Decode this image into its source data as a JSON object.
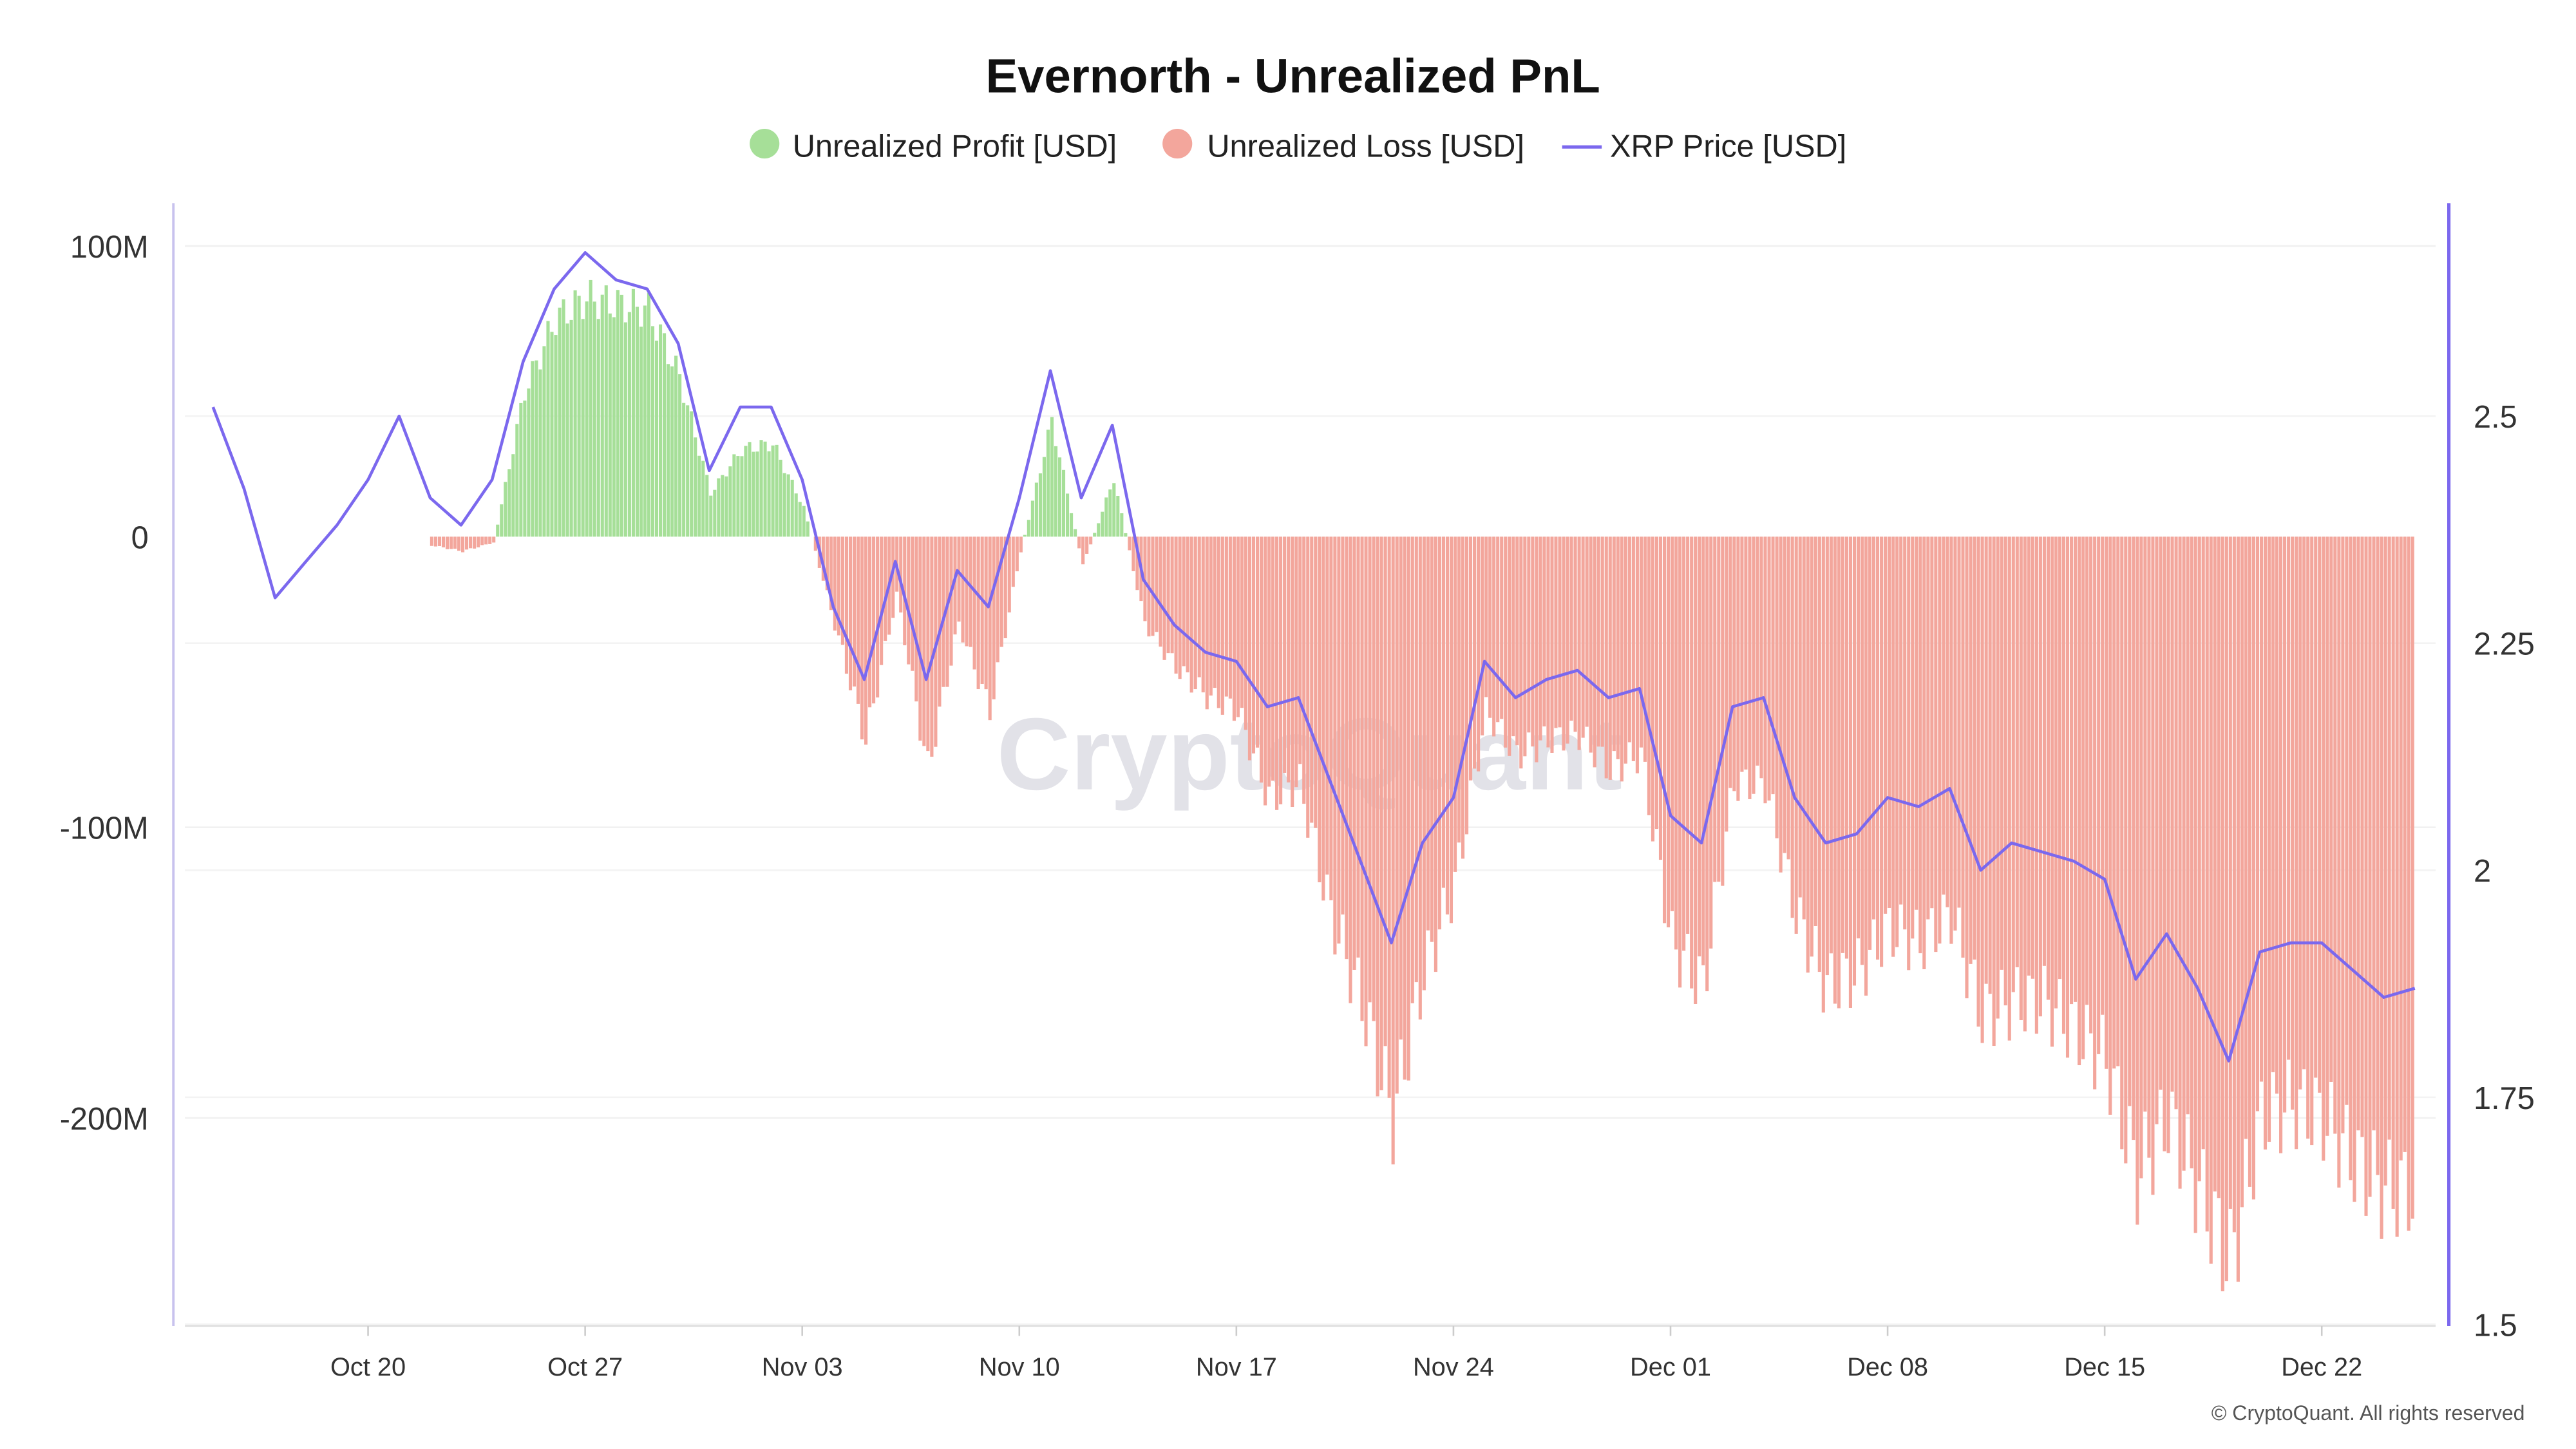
{
  "chart_data": {
    "type": "bar+line",
    "title": "Evernorth - Unrealized PnL",
    "legend": {
      "placement": "top-center",
      "items": [
        {
          "label": "Unrealized Profit [USD]",
          "color": "#a6df98",
          "marker": "circle"
        },
        {
          "label": "Unrealized Loss [USD]",
          "color": "#f3a69c",
          "marker": "circle"
        },
        {
          "label": "XRP Price [USD]",
          "color": "#7b68ee",
          "marker": "line"
        }
      ]
    },
    "x_ticks": [
      "Oct 20",
      "Oct 27",
      "Nov 03",
      "Nov 10",
      "Nov 17",
      "Nov 24",
      "Dec 01",
      "Dec 08",
      "Dec 15",
      "Dec 22"
    ],
    "y_left": {
      "ticks": [
        100,
        0,
        -100,
        -200
      ],
      "tick_labels": [
        "100M",
        "0",
        "-100M",
        "-200M"
      ],
      "range": [
        -272,
        116
      ],
      "unit": "M USD"
    },
    "y_right": {
      "ticks": [
        2.5,
        2.25,
        2,
        1.75,
        1.5
      ],
      "tick_labels": [
        "2.5",
        "2.25",
        "2",
        "1.75",
        "1.5"
      ],
      "range": [
        1.5,
        2.73
      ]
    },
    "grid": true,
    "dates": [
      "Oct 15",
      "Oct 16",
      "Oct 17",
      "Oct 18",
      "Oct 19",
      "Oct 20",
      "Oct 21",
      "Oct 22",
      "Oct 23",
      "Oct 24",
      "Oct 25",
      "Oct 26",
      "Oct 27",
      "Oct 28",
      "Oct 29",
      "Oct 30",
      "Oct 31",
      "Nov 01",
      "Nov 02",
      "Nov 03",
      "Nov 04",
      "Nov 05",
      "Nov 06",
      "Nov 07",
      "Nov 08",
      "Nov 09",
      "Nov 10",
      "Nov 11",
      "Nov 12",
      "Nov 13",
      "Nov 14",
      "Nov 15",
      "Nov 16",
      "Nov 17",
      "Nov 18",
      "Nov 19",
      "Nov 20",
      "Nov 21",
      "Nov 22",
      "Nov 23",
      "Nov 24",
      "Nov 25",
      "Nov 26",
      "Nov 27",
      "Nov 28",
      "Nov 29",
      "Nov 30",
      "Dec 01",
      "Dec 02",
      "Dec 03",
      "Dec 04",
      "Dec 05",
      "Dec 06",
      "Dec 07",
      "Dec 08",
      "Dec 09",
      "Dec 10",
      "Dec 11",
      "Dec 12",
      "Dec 13",
      "Dec 14",
      "Dec 15",
      "Dec 16",
      "Dec 17",
      "Dec 18",
      "Dec 19",
      "Dec 20",
      "Dec 21",
      "Dec 22",
      "Dec 23",
      "Dec 24",
      "Dec 25"
    ],
    "series": [
      {
        "name": "Unrealized PnL [USD]",
        "unit": "M",
        "values": [
          null,
          null,
          null,
          null,
          null,
          null,
          null,
          -3,
          -5,
          -2,
          50,
          75,
          82,
          80,
          78,
          55,
          15,
          30,
          32,
          10,
          -30,
          -70,
          -20,
          -80,
          -30,
          -60,
          -5,
          40,
          -10,
          20,
          -30,
          -45,
          -55,
          -60,
          -90,
          -85,
          -130,
          -160,
          -200,
          -150,
          -120,
          -60,
          -75,
          -70,
          -68,
          -80,
          -75,
          -140,
          -155,
          -85,
          -85,
          -130,
          -155,
          -150,
          -135,
          -140,
          -130,
          -165,
          -160,
          -160,
          -170,
          -180,
          -220,
          -200,
          -225,
          -250,
          -200,
          -195,
          -200,
          -215,
          -225,
          -225
        ]
      },
      {
        "name": "XRP Price [USD]",
        "values": [
          2.51,
          2.42,
          2.3,
          2.34,
          2.38,
          2.43,
          2.5,
          2.41,
          2.38,
          2.43,
          2.56,
          2.64,
          2.68,
          2.65,
          2.64,
          2.58,
          2.44,
          2.51,
          2.51,
          2.43,
          2.29,
          2.21,
          2.34,
          2.21,
          2.33,
          2.29,
          2.41,
          2.55,
          2.41,
          2.49,
          2.32,
          2.27,
          2.24,
          2.23,
          2.18,
          2.19,
          2.1,
          2.01,
          1.92,
          2.03,
          2.08,
          2.23,
          2.19,
          2.21,
          2.22,
          2.19,
          2.2,
          2.06,
          2.03,
          2.18,
          2.19,
          2.08,
          2.03,
          2.04,
          2.08,
          2.07,
          2.09,
          2.0,
          2.03,
          2.02,
          2.01,
          1.99,
          1.88,
          1.93,
          1.87,
          1.79,
          1.91,
          1.92,
          1.92,
          1.89,
          1.86,
          1.87
        ]
      }
    ]
  },
  "watermark": "CryptoQuant",
  "copyright": "© CryptoQuant. All rights reserved"
}
